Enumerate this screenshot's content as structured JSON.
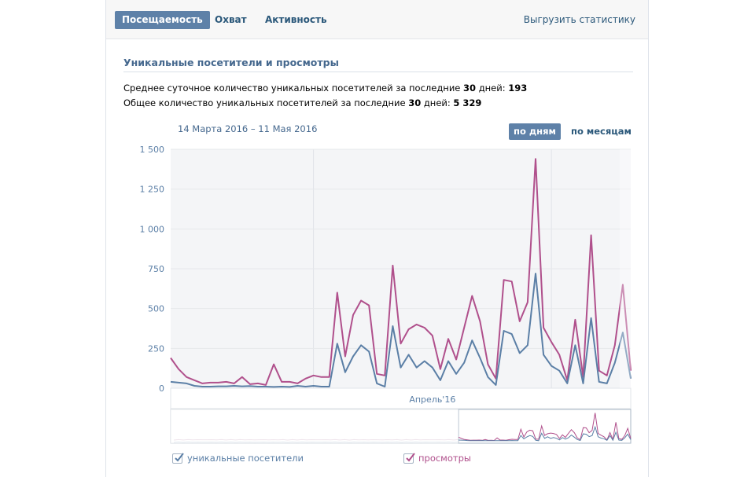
{
  "tabs": [
    {
      "label": "Посещаемость",
      "active": true
    },
    {
      "label": "Охват",
      "active": false
    },
    {
      "label": "Активность",
      "active": false
    }
  ],
  "export_link": "Выгрузить статистику",
  "section": {
    "title": "Уникальные посетители и просмотры",
    "line1": {
      "text": "Среднее суточное количество уникальных посетителей за последние ",
      "days": "30",
      "middle": " дней: ",
      "value": "193"
    },
    "line2": {
      "text": "Общее количество уникальных посетителей за последние ",
      "days": "30",
      "middle": " дней: ",
      "value": "5 329"
    }
  },
  "date_range": "14 Марта 2016 – 11 Мая 2016",
  "period_buttons": {
    "days": "по дням",
    "months": "по месяцам",
    "active": "days"
  },
  "chart_data": {
    "type": "line",
    "title": "Уникальные посетители и просмотры",
    "x_start": "2016-03-14",
    "x_end": "2016-05-11",
    "x_month_label": "Апрель'16",
    "y_range": [
      0,
      1500
    ],
    "y_ticks": [
      0,
      250,
      500,
      750,
      1000,
      1250,
      1500
    ],
    "y_tick_labels": [
      "0",
      "250",
      "500",
      "750",
      "1 000",
      "1 250",
      "1 500"
    ],
    "series": [
      {
        "name": "уникальные посетители",
        "color": "#5b7fa6",
        "values": [
          40,
          35,
          30,
          15,
          10,
          10,
          12,
          12,
          15,
          12,
          14,
          10,
          10,
          8,
          10,
          8,
          15,
          10,
          15,
          10,
          10,
          280,
          100,
          200,
          270,
          230,
          30,
          10,
          390,
          130,
          210,
          130,
          170,
          130,
          50,
          170,
          90,
          160,
          300,
          190,
          70,
          20,
          360,
          340,
          220,
          270,
          720,
          210,
          140,
          110,
          30,
          270,
          30,
          440,
          40,
          30,
          160,
          350,
          60
        ]
      },
      {
        "name": "просмотры",
        "color": "#b0508c",
        "values": [
          190,
          120,
          70,
          50,
          30,
          35,
          35,
          40,
          30,
          70,
          25,
          30,
          20,
          150,
          40,
          40,
          30,
          60,
          80,
          70,
          70,
          600,
          200,
          460,
          550,
          520,
          90,
          80,
          770,
          280,
          370,
          400,
          380,
          330,
          120,
          310,
          180,
          380,
          580,
          420,
          150,
          60,
          680,
          670,
          420,
          540,
          1440,
          380,
          290,
          210,
          50,
          430,
          70,
          960,
          110,
          80,
          270,
          650,
          110
        ]
      }
    ],
    "navigator_range": "selected last ~30 days",
    "legend": [
      "уникальные посетители",
      "просмотры"
    ]
  },
  "legend": {
    "visitors": {
      "label": "уникальные посетители",
      "checked": true,
      "color": "#5b7fa6"
    },
    "views": {
      "label": "просмотры",
      "checked": true,
      "color": "#b0508c"
    }
  }
}
